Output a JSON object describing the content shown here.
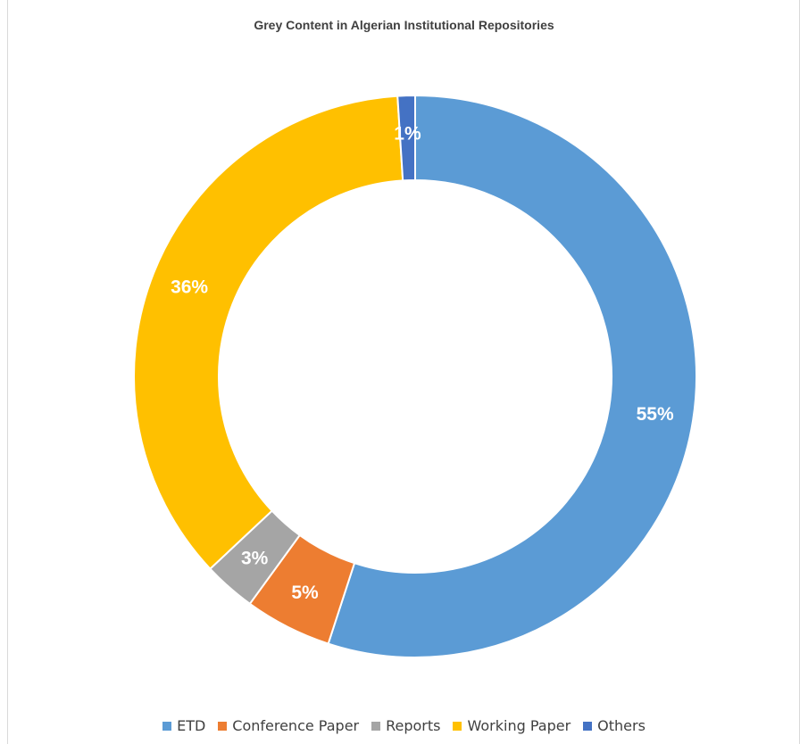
{
  "chart_data": {
    "type": "pie",
    "subtype": "doughnut",
    "title": "Grey Content in Algerian Institutional Repositories",
    "categories": [
      "ETD",
      "Conference Paper",
      "Reports",
      "Working Paper",
      "Others"
    ],
    "values": [
      55,
      5,
      3,
      36,
      1
    ],
    "labels": [
      "55%",
      "5%",
      "3%",
      "36%",
      "1%"
    ],
    "colors": [
      "#5B9BD5",
      "#ED7D31",
      "#A5A5A5",
      "#FFC000",
      "#4472C4"
    ],
    "legend_position": "bottom"
  },
  "legend": {
    "items": [
      {
        "label": "ETD",
        "color": "#5B9BD5"
      },
      {
        "label": "Conference Paper",
        "color": "#ED7D31"
      },
      {
        "label": "Reports",
        "color": "#A5A5A5"
      },
      {
        "label": "Working Paper",
        "color": "#FFC000"
      },
      {
        "label": "Others",
        "color": "#4472C4"
      }
    ]
  }
}
